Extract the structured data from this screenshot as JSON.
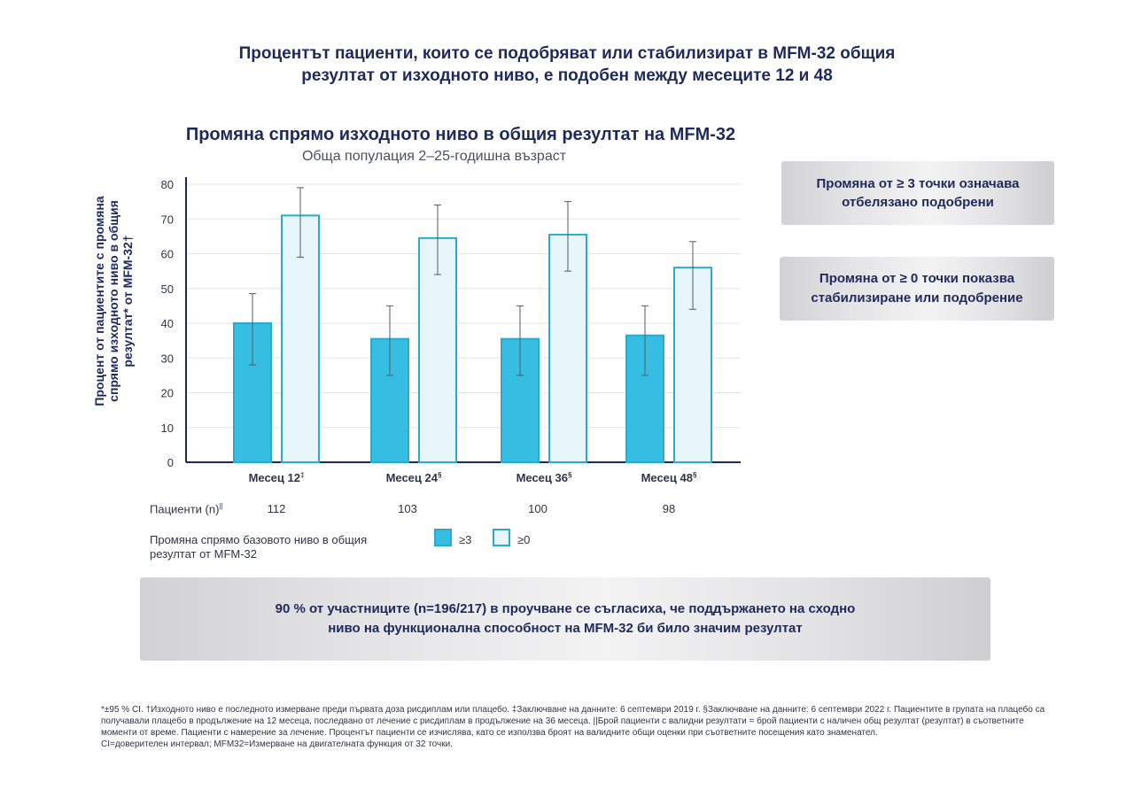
{
  "headline": "Процентът пациенти, които се подобряват или стабилизират в MFM-32 общия резултат от изходното ниво, е подобен между месеците 12 и 48",
  "headline_line1": "Процентът пациенти, които се подобряват или стабилизират в MFM-32 общия",
  "headline_line2": "резултат от изходното ниво, е подобен между месеците 12 и 48",
  "colors": {
    "filled": "#35bde2",
    "light": "#e6f6fb",
    "border": "#2ba9cf",
    "navy": "#1f2a5c"
  },
  "chart_data": {
    "type": "bar",
    "title": "Промяна спрямо изходното ниво в общия резултат на MFM-32",
    "subtitle": "Обща популация 2–25-годишна възраст",
    "ylabel": "Процент от пациентите с промяна спрямо изходното ниво в общия резултат* от MFM-32†",
    "ylim": [
      0,
      80
    ],
    "yticks": [
      0,
      10,
      20,
      30,
      40,
      50,
      60,
      70,
      80
    ],
    "grid": true,
    "categories": [
      "Месец 12‡",
      "Месец 24§",
      "Месец 36§",
      "Месец 48§"
    ],
    "series": [
      {
        "name": "≥3",
        "values": [
          40,
          35.5,
          35.5,
          36.5
        ],
        "ci_low": [
          28,
          25,
          25,
          25
        ],
        "ci_high": [
          48.5,
          45,
          45,
          45
        ]
      },
      {
        "name": "≥0",
        "values": [
          71,
          64.5,
          65.5,
          56
        ],
        "ci_low": [
          59,
          54,
          55,
          44
        ],
        "ci_high": [
          79,
          74,
          75,
          63.5
        ]
      }
    ],
    "legend_position": "bottom",
    "legend_title": "Промяна спрямо базовото ниво в общия резултат от MFM-32"
  },
  "patients": {
    "label": "Пациенти (n)",
    "label_sup": "||",
    "values": [
      "112",
      "103",
      "100",
      "98"
    ]
  },
  "legend": {
    "title": "Промяна спрямо базовото ниво в общия резултат от MFM-32",
    "items": [
      "≥3",
      "≥0"
    ]
  },
  "callouts": {
    "box1": "Промяна от ≥ 3 точки означава отбелязано подобрени",
    "box2": "Промяна от ≥ 0 точки показва стабилизиране или подобрение",
    "bottom": "90 % от участниците (n=196/217) в проучване се съгласиха, че поддържането на сходно ниво на функционална способност на MFM-32 би било значим резултат"
  },
  "footnote": [
    "*±95 % CI. †Изходното ниво е последното измерване преди първата доза рисдиплам или плацебо. ‡Заключване на данните: 6 септември 2019 г. §Заключване на данните: 6 септември 2022 г. Пациентите в групата на плацебо са получавали плацебо в продължение на 12 месеца, последвано от лечение с рисдиплам в продължение на 36 месеца. ||Брой пациенти с валидни резултати = брой пациенти с наличен общ резултат (резултат) в съответните моменти от време. Пациенти с намерение за лечение. Процентът пациенти се изчислява, като се използва броят на валидните общи оценки при съответните посещения като знаменател.",
    "CI=доверителен интервал; MFM32=Измерване на двигателната функция от 32 точки."
  ]
}
